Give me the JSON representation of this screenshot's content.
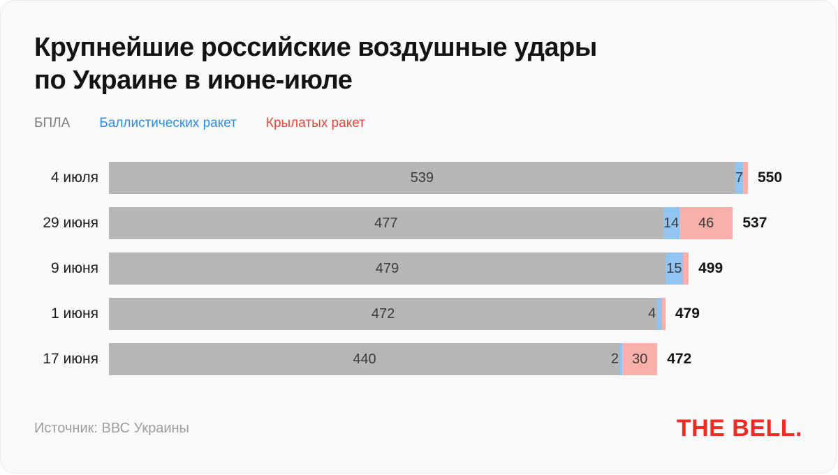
{
  "title": {
    "line1": "Крупнейшие российские воздушные удары",
    "line2": "по Украине в июне-июле"
  },
  "legend": [
    {
      "key": "uav",
      "label": "БПЛА",
      "color": "#7e7e7e"
    },
    {
      "key": "ballistic",
      "label": "Баллистических ракет",
      "color": "#2e8be6"
    },
    {
      "key": "cruise",
      "label": "Крылатых ракет",
      "color": "#e6463a"
    }
  ],
  "colors": {
    "uav": "#b6b6b6",
    "ballistic": "#92c4f1",
    "cruise": "#f9b0aa",
    "logo_red": "#ef2b24"
  },
  "chart_data": {
    "type": "bar",
    "orientation": "horizontal",
    "stacked": true,
    "categories": [
      "4 июля",
      "29 июня",
      "9 июня",
      "1 июня",
      "17 июня"
    ],
    "series": [
      {
        "name": "БПЛА",
        "values": [
          539,
          477,
          479,
          472,
          440
        ]
      },
      {
        "name": "Баллистических ракет",
        "values": [
          7,
          14,
          15,
          4,
          2
        ]
      },
      {
        "name": "Крылатых ракет",
        "values": [
          4,
          46,
          5,
          3,
          30
        ]
      }
    ],
    "totals": [
      550,
      537,
      499,
      479,
      472
    ],
    "xlim": [
      0,
      550
    ],
    "grid": false,
    "legend_position": "top",
    "rows": [
      {
        "category": "4 июля",
        "total": "550",
        "segments": [
          {
            "key": "uav",
            "value": 539,
            "label": "539",
            "label_pos": "in"
          },
          {
            "key": "ballistic",
            "value": 7,
            "label": "7",
            "label_pos": "in"
          },
          {
            "key": "cruise",
            "value": 4,
            "label": "",
            "label_pos": "none"
          }
        ]
      },
      {
        "category": "29 июня",
        "total": "537",
        "segments": [
          {
            "key": "uav",
            "value": 477,
            "label": "477",
            "label_pos": "in"
          },
          {
            "key": "ballistic",
            "value": 14,
            "label": "14",
            "label_pos": "in"
          },
          {
            "key": "cruise",
            "value": 46,
            "label": "46",
            "label_pos": "in"
          }
        ]
      },
      {
        "category": "9 июня",
        "total": "499",
        "segments": [
          {
            "key": "uav",
            "value": 479,
            "label": "479",
            "label_pos": "in"
          },
          {
            "key": "ballistic",
            "value": 15,
            "label": "15",
            "label_pos": "in"
          },
          {
            "key": "cruise",
            "value": 5,
            "label": "",
            "label_pos": "none"
          }
        ]
      },
      {
        "category": "1 июня",
        "total": "479",
        "segments": [
          {
            "key": "uav",
            "value": 472,
            "label": "472",
            "label_pos": "in"
          },
          {
            "key": "ballistic",
            "value": 4,
            "label": "4",
            "label_pos": "left"
          },
          {
            "key": "cruise",
            "value": 3,
            "label": "",
            "label_pos": "none"
          }
        ]
      },
      {
        "category": "17 июня",
        "total": "472",
        "segments": [
          {
            "key": "uav",
            "value": 440,
            "label": "440",
            "label_pos": "in"
          },
          {
            "key": "ballistic",
            "value": 2,
            "label": "2",
            "label_pos": "left"
          },
          {
            "key": "cruise",
            "value": 30,
            "label": "30",
            "label_pos": "in"
          }
        ]
      }
    ]
  },
  "source": "Источник: ВВС Украины",
  "logo": "THE BELL."
}
